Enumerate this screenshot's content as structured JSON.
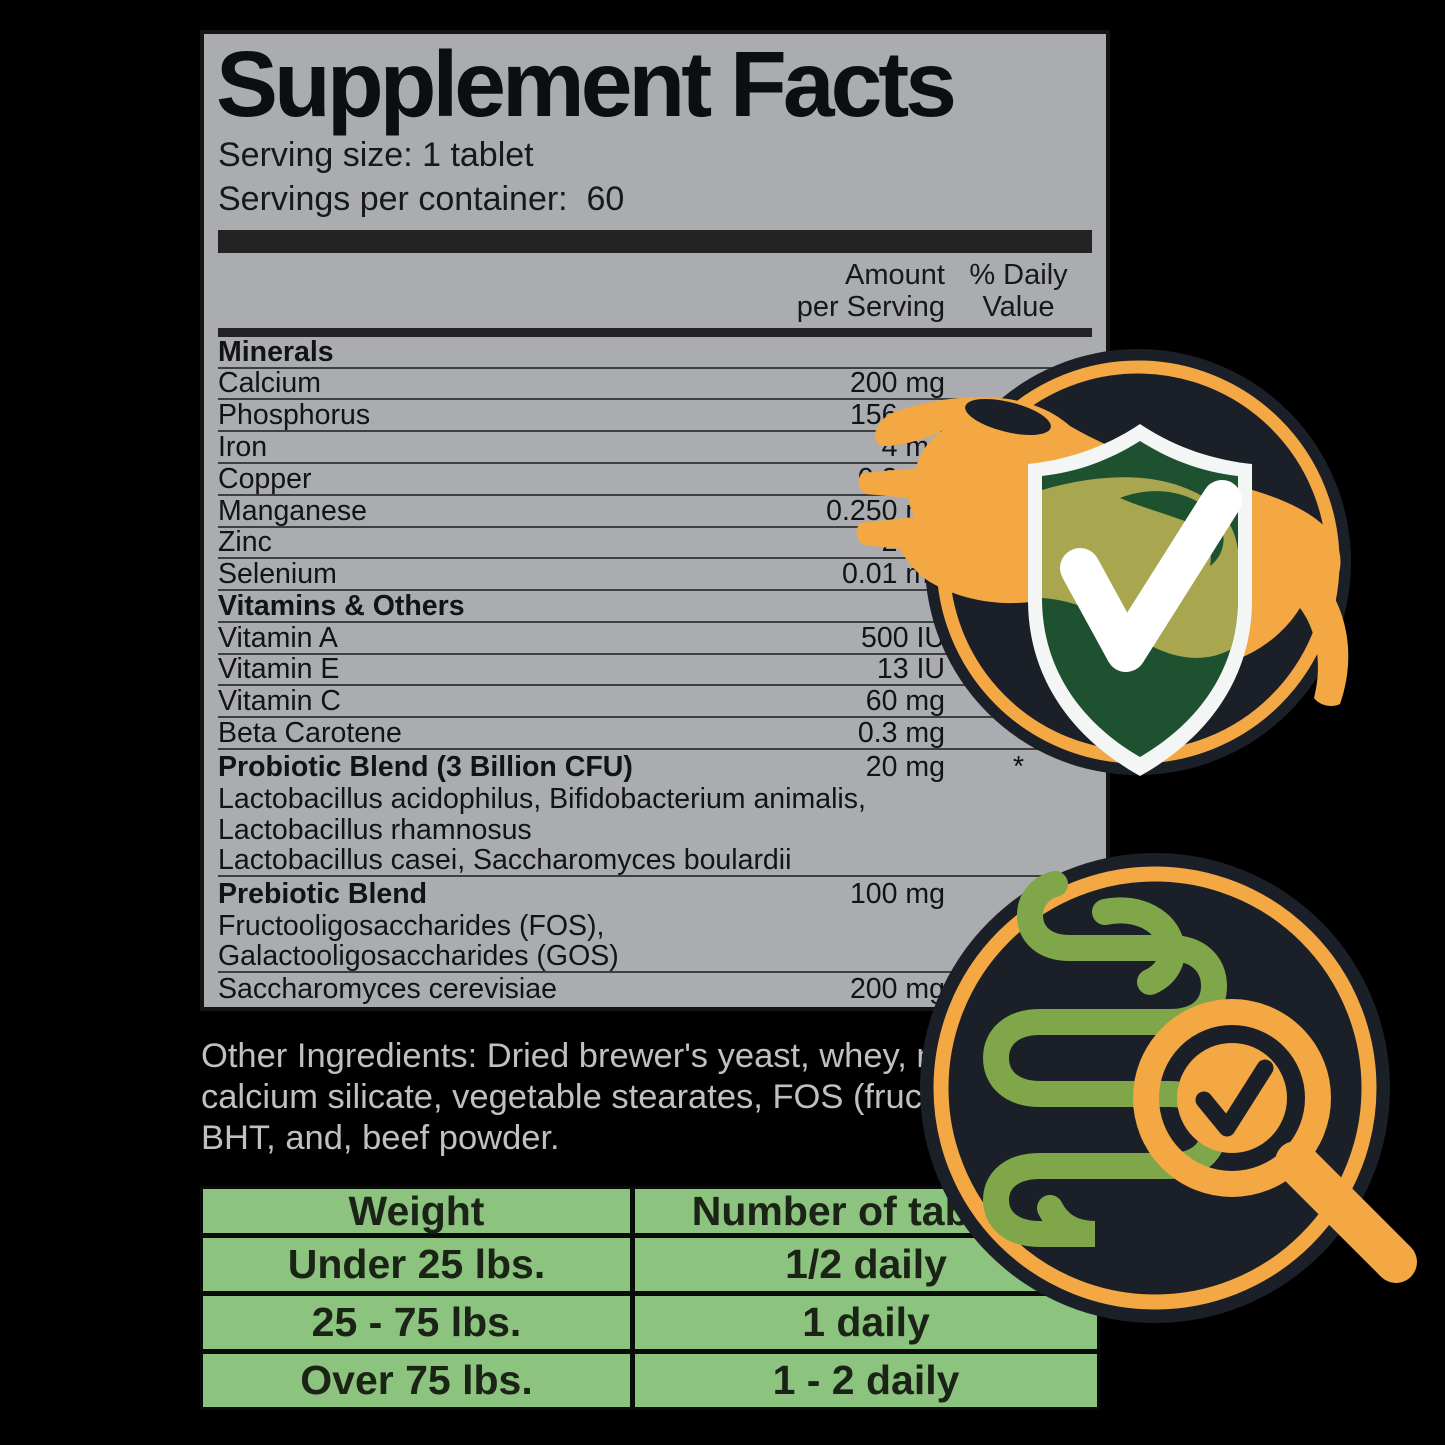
{
  "panel": {
    "title": "Supplement Facts",
    "serving_size": "Serving size: 1 tablet",
    "servings_per_container": "Servings per container:  60",
    "column_headers": {
      "amount_line1": "Amount",
      "amount_line2": "per Serving",
      "daily_value_line1": "% Daily",
      "daily_value_line2": "Value"
    },
    "rows": [
      {
        "label": "Minerals",
        "amount": "",
        "dv": "",
        "style": "section",
        "sep": true
      },
      {
        "label": "Calcium",
        "amount": "200 mg",
        "dv": "",
        "style": "item",
        "sep": true
      },
      {
        "label": "Phosphorus",
        "amount": "156 mg",
        "dv": "",
        "style": "item",
        "sep": true
      },
      {
        "label": "Iron",
        "amount": "4 mg",
        "dv": "",
        "style": "item",
        "sep": true
      },
      {
        "label": "Copper",
        "amount": "0.2 mg",
        "dv": "",
        "style": "item",
        "sep": true
      },
      {
        "label": "Manganese",
        "amount": "0.250 mg",
        "dv": "",
        "style": "item",
        "sep": true
      },
      {
        "label": "Zinc",
        "amount": "2 mg",
        "dv": "",
        "style": "item",
        "sep": true
      },
      {
        "label": "Selenium",
        "amount": "0.01 mg",
        "dv": "",
        "style": "item",
        "sep": true
      },
      {
        "label": "Vitamins & Others",
        "amount": "",
        "dv": "",
        "style": "section",
        "sep": true
      },
      {
        "label": "Vitamin A",
        "amount": "500 IU",
        "dv": "",
        "style": "item",
        "sep": true
      },
      {
        "label": "Vitamin E",
        "amount": "13 IU",
        "dv": "",
        "style": "item",
        "sep": true
      },
      {
        "label": "Vitamin C",
        "amount": "60 mg",
        "dv": "",
        "style": "item",
        "sep": true
      },
      {
        "label": "Beta Carotene",
        "amount": "0.3 mg",
        "dv": "",
        "style": "item",
        "sep": true
      },
      {
        "label": "Probiotic Blend (3 Billion CFU)",
        "amount": "20 mg",
        "dv": "*",
        "style": "bold-item",
        "sep": false
      },
      {
        "label": "Lactobacillus acidophilus, Bifidobacterium animalis,",
        "amount": "",
        "dv": "",
        "style": "sub",
        "sep": false
      },
      {
        "label": "Lactobacillus rhamnosus",
        "amount": "",
        "dv": "",
        "style": "sub",
        "sep": false
      },
      {
        "label": "Lactobacillus casei, Saccharomyces boulardii",
        "amount": "",
        "dv": "",
        "style": "sub",
        "sep": true
      },
      {
        "label": "Prebiotic Blend",
        "amount": "100 mg",
        "dv": "",
        "style": "bold-item",
        "sep": false
      },
      {
        "label": "Fructooligosaccharides (FOS),",
        "amount": "",
        "dv": "",
        "style": "sub",
        "sep": false
      },
      {
        "label": "Galactooligosaccharides (GOS)",
        "amount": "",
        "dv": "",
        "style": "sub",
        "sep": true
      },
      {
        "label": "Saccharomyces cerevisiae",
        "amount": "200 mg",
        "dv": "",
        "style": "item",
        "sep": false
      }
    ]
  },
  "other_ingredients": {
    "line1": "Other Ingredients: Dried brewer's yeast, whey, natural",
    "line2": "calcium silicate, vegetable stearates, FOS (fructooligo",
    "line3": "BHT, and, beef powder."
  },
  "dosage_table": {
    "headers": [
      "Weight",
      "Number of tablets"
    ],
    "rows": [
      [
        "Under 25 lbs.",
        "1/2 daily"
      ],
      [
        "25 - 75 lbs.",
        "1 daily"
      ],
      [
        "Over 75 lbs.",
        "1 - 2 daily"
      ]
    ]
  },
  "badges": {
    "top_badge": "dog-shield-check-badge",
    "bottom_badge": "gut-health-check-badge"
  },
  "colors": {
    "background": "#000000",
    "panel_gray": "#aaacaf",
    "accent_orange": "#f3a844",
    "badge_dark": "#1b1f27",
    "shield_green_dark": "#1d5130",
    "shield_olive": "#a8a64f",
    "intestine_green": "#7fa74a",
    "table_green": "#8cc37e"
  }
}
